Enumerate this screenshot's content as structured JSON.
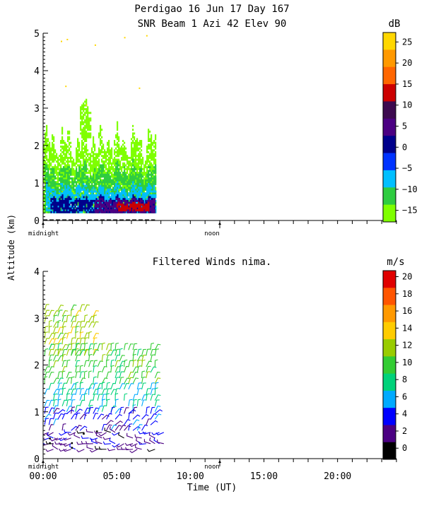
{
  "header": {
    "line1": "Perdigao  16 Jun 17 Day 167",
    "line2": "SNR Beam 1 Azi  42 Elev 90"
  },
  "shared_ylabel": "Altitude (km)",
  "colors": {
    "snr_scale": [
      "#7fff00",
      "#2ecc40",
      "#00bfff",
      "#0033ff",
      "#00008b",
      "#4b0082",
      "#3d0a4f",
      "#cc0000",
      "#ff6600",
      "#ff9900",
      "#ffd700"
    ],
    "wind_scale": [
      "#000000",
      "#4b0082",
      "#0000ff",
      "#00aaff",
      "#00d27a",
      "#33cc33",
      "#99cc00",
      "#ffcc00",
      "#ff9900",
      "#ff5500",
      "#e00000"
    ]
  },
  "chart_data": [
    {
      "type": "heatmap",
      "title": "SNR Beam 1 Azi  42 Elev 90",
      "xlabel": "",
      "ylabel": "Altitude (km)",
      "xlim": [
        0,
        24
      ],
      "ylim": [
        0,
        5
      ],
      "yticks": [
        "0",
        "1",
        "2",
        "3",
        "4",
        "5"
      ],
      "x_markers": [
        "midnight",
        "noon"
      ],
      "colorbar": {
        "unit": "dB",
        "ticks": [
          "25",
          "20",
          "15",
          "10",
          "5",
          "0",
          "−5",
          "−10",
          "−15"
        ],
        "range": [
          -15,
          30
        ]
      },
      "data_extent_hours": [
        0,
        7.6
      ],
      "regions": [
        {
          "snr_db": -12,
          "x": [
            0.0,
            7.6
          ],
          "y": [
            0.2,
            2.2
          ]
        },
        {
          "snr_db": -12,
          "x": [
            2.5,
            3.2
          ],
          "y": [
            2.2,
            3.1
          ]
        },
        {
          "snr_db": -8,
          "x": [
            0.1,
            7.6
          ],
          "y": [
            0.2,
            1.4
          ]
        },
        {
          "snr_db": -3,
          "x": [
            0.2,
            7.6
          ],
          "y": [
            0.2,
            0.9
          ]
        },
        {
          "snr_db": 2,
          "x": [
            0.5,
            7.6
          ],
          "y": [
            0.2,
            0.6
          ]
        },
        {
          "snr_db": 8,
          "x": [
            3.5,
            7.6
          ],
          "y": [
            0.2,
            0.55
          ]
        },
        {
          "snr_db": 15,
          "x": [
            5.0,
            7.2
          ],
          "y": [
            0.25,
            0.45
          ]
        }
      ]
    },
    {
      "type": "scatter",
      "title": "Filtered Winds nima.",
      "xlabel": "Time (UT)",
      "ylabel": "Altitude (km)",
      "xlim": [
        0,
        24
      ],
      "ylim": [
        0,
        4
      ],
      "xticks": [
        "00:00",
        "05:00",
        "10:00",
        "15:00",
        "20:00"
      ],
      "yticks": [
        "0",
        "1",
        "2",
        "3",
        "4"
      ],
      "x_markers": [
        "midnight",
        "noon"
      ],
      "colorbar": {
        "unit": "m/s",
        "ticks": [
          "20",
          "18",
          "16",
          "14",
          "12",
          "10",
          "8",
          "6",
          "4",
          "2",
          "0"
        ],
        "range": [
          0,
          22
        ]
      },
      "data_extent_hours": [
        0,
        8.2
      ],
      "wind_field": [
        {
          "alt_km": [
            2.2,
            3.2
          ],
          "hours": [
            0.1,
            3.5
          ],
          "speed_ms": 13
        },
        {
          "alt_km": [
            1.6,
            2.4
          ],
          "hours": [
            0.1,
            7.6
          ],
          "speed_ms": 11
        },
        {
          "alt_km": [
            1.0,
            1.6
          ],
          "hours": [
            0.1,
            7.6
          ],
          "speed_ms": 8
        },
        {
          "alt_km": [
            0.6,
            1.0
          ],
          "hours": [
            0.1,
            7.8
          ],
          "speed_ms": 5
        },
        {
          "alt_km": [
            0.2,
            0.6
          ],
          "hours": [
            0.1,
            8.2
          ],
          "speed_ms": 3
        }
      ]
    }
  ]
}
